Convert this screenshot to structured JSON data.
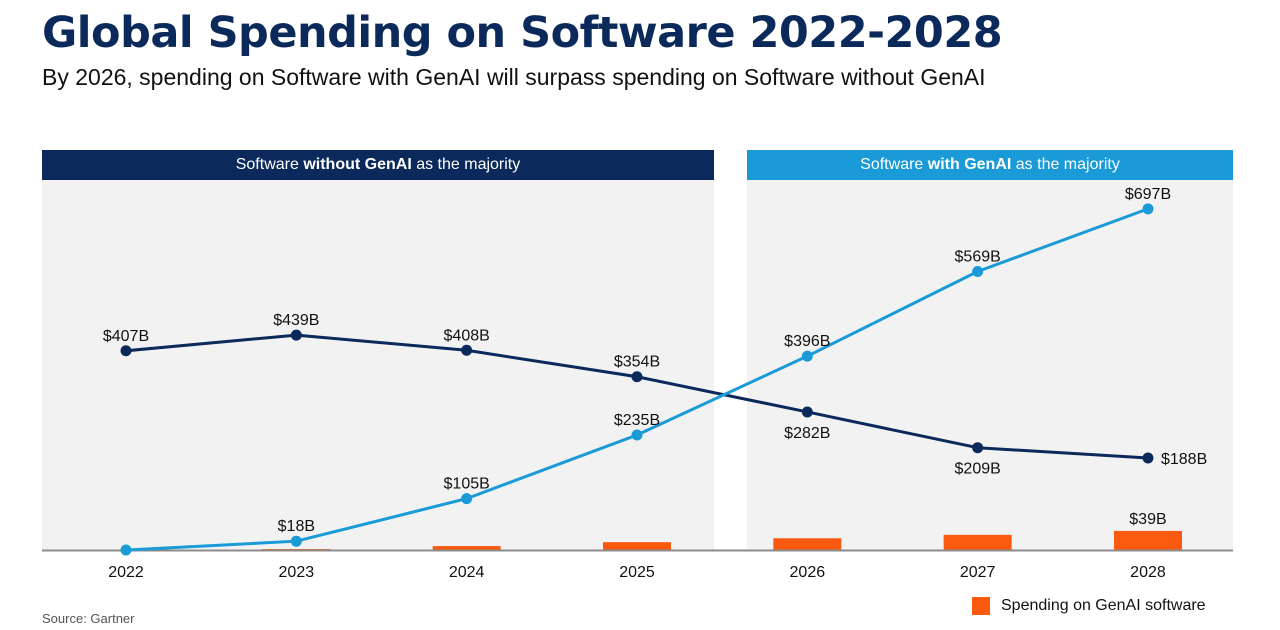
{
  "title": "Global Spending on Software 2022-2028",
  "subtitle": "By 2026, spending on Software with GenAI will surpass spending on Software without GenAI",
  "bands": {
    "left": {
      "prefix": "Software ",
      "bold": "without GenAI",
      "suffix": " as the majority"
    },
    "right": {
      "prefix": "Software ",
      "bold": "with GenAI",
      "suffix": " as the majority"
    }
  },
  "source": "Source: Gartner",
  "colors": {
    "without_genai": "#0b2a5b",
    "with_genai": "#1a9bd7",
    "genai_software": "#fa5a0f",
    "panel_background": "#f2f2f3",
    "axis": "#8c8c8c"
  },
  "chart_data": {
    "type": "line",
    "title": "Global Spending on Software 2022-2028",
    "subtitle": "By 2026, spending on Software with GenAI will surpass spending on Software without GenAI",
    "unit": "$B",
    "categories": [
      "2022",
      "2023",
      "2024",
      "2025",
      "2026",
      "2027",
      "2028"
    ],
    "ylim": [
      0,
      760
    ],
    "grid": false,
    "legend_position": "bottom-right",
    "series": [
      {
        "key": "without_genai",
        "type": "line",
        "values": [
          407,
          439,
          408,
          354,
          282,
          209,
          188
        ],
        "labels": [
          "$407B",
          "$439B",
          "$408B",
          "$354B",
          "$282B",
          "$209B",
          "$188B"
        ],
        "label_positions": [
          "above",
          "above",
          "above",
          "above",
          "below",
          "below",
          "right"
        ]
      },
      {
        "key": "with_genai",
        "type": "line",
        "values": [
          0,
          18,
          105,
          235,
          396,
          569,
          697
        ],
        "labels": [
          "",
          "$18B",
          "$105B",
          "$235B",
          "$396B",
          "$569B",
          "$697B"
        ],
        "label_positions": [
          "above",
          "above",
          "above",
          "above",
          "above",
          "above",
          "above"
        ]
      },
      {
        "key": "genai_software",
        "name": "Spending on GenAI software",
        "type": "bar",
        "values": [
          0,
          2,
          8,
          16,
          24,
          31,
          39
        ],
        "labels": [
          "",
          "",
          "",
          "",
          "",
          "",
          "$39B"
        ]
      }
    ]
  }
}
